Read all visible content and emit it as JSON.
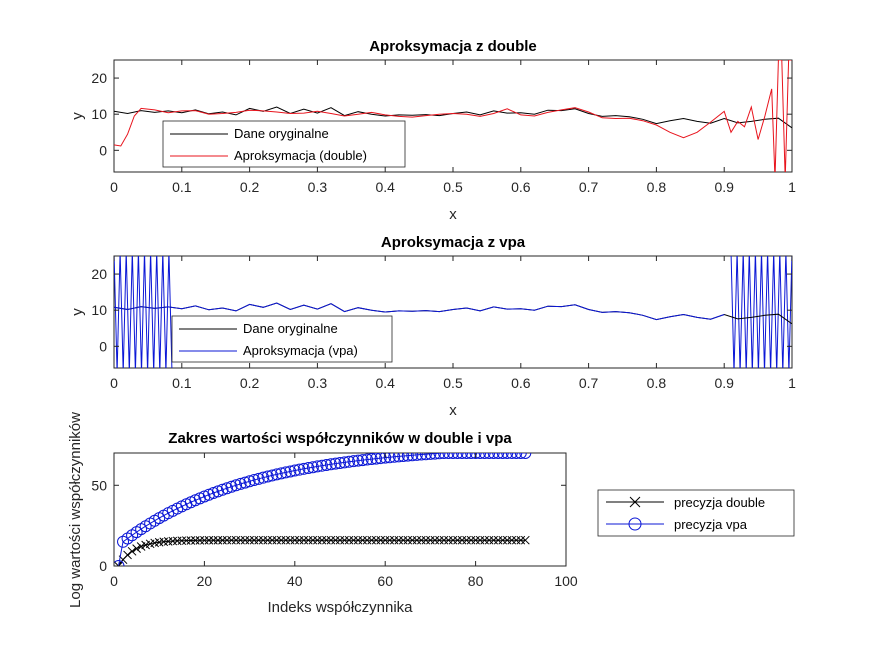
{
  "chart_data": [
    {
      "type": "line",
      "title": "Aproksymacja z double",
      "xlabel": "x",
      "ylabel": "y",
      "xlim": [
        0,
        1
      ],
      "ylim": [
        -6,
        25
      ],
      "xticks": [
        "0",
        "0.1",
        "0.2",
        "0.3",
        "0.4",
        "0.5",
        "0.6",
        "0.7",
        "0.8",
        "0.9",
        "1"
      ],
      "yticks": [
        "0",
        "10",
        "20"
      ],
      "legend_position": "bottom-left",
      "series": [
        {
          "name": "Dane oryginalne",
          "color": "#000000",
          "x": [
            0,
            0.02,
            0.04,
            0.06,
            0.08,
            0.1,
            0.12,
            0.14,
            0.16,
            0.18,
            0.2,
            0.22,
            0.24,
            0.26,
            0.28,
            0.3,
            0.32,
            0.34,
            0.36,
            0.38,
            0.4,
            0.42,
            0.44,
            0.46,
            0.48,
            0.5,
            0.52,
            0.54,
            0.56,
            0.58,
            0.6,
            0.62,
            0.64,
            0.66,
            0.68,
            0.7,
            0.72,
            0.74,
            0.76,
            0.78,
            0.8,
            0.82,
            0.84,
            0.86,
            0.88,
            0.9,
            0.92,
            0.94,
            0.96,
            0.98,
            1.0
          ],
          "y": [
            10.8,
            10.2,
            11.0,
            10.5,
            10.9,
            10.4,
            11.2,
            10.1,
            10.6,
            9.8,
            11.6,
            10.8,
            12.0,
            10.2,
            11.4,
            10.3,
            11.8,
            9.6,
            10.7,
            10.0,
            9.5,
            9.8,
            9.7,
            9.9,
            9.6,
            10.2,
            10.6,
            9.8,
            10.9,
            10.3,
            10.4,
            10.0,
            11.1,
            11.0,
            11.5,
            10.2,
            9.4,
            9.6,
            9.3,
            8.6,
            7.4,
            8.2,
            8.8,
            8.0,
            7.5,
            8.8,
            7.6,
            8.0,
            8.6,
            8.9,
            6.2
          ]
        },
        {
          "name": "Aproksymacja (double)",
          "color": "#e8141d",
          "x": [
            0,
            0.01,
            0.02,
            0.03,
            0.04,
            0.06,
            0.08,
            0.1,
            0.12,
            0.14,
            0.16,
            0.18,
            0.2,
            0.22,
            0.24,
            0.26,
            0.28,
            0.3,
            0.32,
            0.34,
            0.36,
            0.38,
            0.4,
            0.42,
            0.44,
            0.46,
            0.48,
            0.5,
            0.52,
            0.54,
            0.56,
            0.58,
            0.6,
            0.62,
            0.64,
            0.66,
            0.68,
            0.7,
            0.72,
            0.74,
            0.76,
            0.78,
            0.8,
            0.82,
            0.84,
            0.86,
            0.88,
            0.9,
            0.91,
            0.92,
            0.93,
            0.94,
            0.95,
            0.96,
            0.97,
            0.975,
            0.98,
            0.985,
            0.99,
            0.995,
            1.0
          ],
          "y": [
            1.5,
            1.2,
            4.5,
            9.5,
            11.6,
            11.2,
            10.4,
            10.9,
            11.0,
            10.0,
            10.2,
            10.5,
            11.1,
            10.9,
            10.6,
            10.2,
            10.3,
            10.8,
            10.2,
            9.5,
            10.0,
            10.5,
            9.8,
            9.4,
            9.2,
            9.6,
            10.0,
            10.2,
            10.0,
            9.4,
            10.2,
            11.5,
            9.8,
            9.5,
            10.5,
            11.2,
            11.8,
            10.6,
            9.0,
            8.8,
            8.9,
            8.2,
            7.0,
            5.0,
            3.5,
            5.0,
            7.8,
            10.8,
            5.0,
            8.0,
            6.5,
            12.0,
            3.0,
            9.5,
            17.0,
            -8.0,
            25.0,
            25.0,
            -8.0,
            25.0,
            25.0
          ]
        }
      ]
    },
    {
      "type": "line",
      "title": "Aproksymacja z vpa",
      "xlabel": "x",
      "ylabel": "y",
      "xlim": [
        0,
        1
      ],
      "ylim": [
        -6,
        25
      ],
      "xticks": [
        "0",
        "0.1",
        "0.2",
        "0.3",
        "0.4",
        "0.5",
        "0.6",
        "0.7",
        "0.8",
        "0.9",
        "1"
      ],
      "yticks": [
        "0",
        "10",
        "20"
      ],
      "legend_position": "bottom-left",
      "oscillation_note_regions": [
        [
          0,
          0.09
        ],
        [
          0.91,
          1.0
        ]
      ],
      "series": [
        {
          "name": "Dane oryginalne",
          "color": "#000000",
          "x": [
            0,
            0.02,
            0.04,
            0.06,
            0.08,
            0.1,
            0.12,
            0.14,
            0.16,
            0.18,
            0.2,
            0.22,
            0.24,
            0.26,
            0.28,
            0.3,
            0.32,
            0.34,
            0.36,
            0.38,
            0.4,
            0.42,
            0.44,
            0.46,
            0.48,
            0.5,
            0.52,
            0.54,
            0.56,
            0.58,
            0.6,
            0.62,
            0.64,
            0.66,
            0.68,
            0.7,
            0.72,
            0.74,
            0.76,
            0.78,
            0.8,
            0.82,
            0.84,
            0.86,
            0.88,
            0.9,
            0.92,
            0.94,
            0.96,
            0.98,
            1.0
          ],
          "y": [
            10.8,
            10.2,
            11.0,
            10.5,
            10.9,
            10.4,
            11.2,
            10.1,
            10.6,
            9.8,
            11.6,
            10.8,
            12.0,
            10.2,
            11.4,
            10.3,
            11.8,
            9.6,
            10.7,
            10.0,
            9.5,
            9.8,
            9.7,
            9.9,
            9.6,
            10.2,
            10.6,
            9.8,
            10.9,
            10.3,
            10.4,
            10.0,
            11.1,
            11.0,
            11.5,
            10.2,
            9.4,
            9.6,
            9.3,
            8.6,
            7.4,
            8.2,
            8.8,
            8.0,
            7.5,
            8.8,
            7.6,
            8.0,
            8.6,
            8.9,
            6.2
          ]
        },
        {
          "name": "Aproksymacja (vpa)",
          "color": "#0b17d6",
          "x": [
            0,
            0.02,
            0.04,
            0.06,
            0.08,
            0.1,
            0.12,
            0.14,
            0.16,
            0.18,
            0.2,
            0.22,
            0.24,
            0.26,
            0.28,
            0.3,
            0.32,
            0.34,
            0.36,
            0.38,
            0.4,
            0.42,
            0.44,
            0.46,
            0.48,
            0.5,
            0.52,
            0.54,
            0.56,
            0.58,
            0.6,
            0.62,
            0.64,
            0.66,
            0.68,
            0.7,
            0.72,
            0.74,
            0.76,
            0.78,
            0.8,
            0.82,
            0.84,
            0.86,
            0.88,
            0.9
          ],
          "y": [
            10.8,
            10.2,
            11.0,
            10.5,
            10.9,
            10.4,
            11.2,
            10.1,
            10.6,
            9.8,
            11.6,
            10.8,
            12.0,
            10.2,
            11.4,
            10.3,
            11.8,
            9.6,
            10.7,
            10.0,
            9.5,
            9.8,
            9.7,
            9.9,
            9.6,
            10.2,
            10.6,
            9.8,
            10.9,
            10.3,
            10.4,
            10.0,
            11.1,
            11.0,
            11.5,
            10.2,
            9.4,
            9.6,
            9.3,
            8.6,
            7.4,
            8.2,
            8.8,
            8.0,
            7.5,
            8.8
          ]
        }
      ]
    },
    {
      "type": "line",
      "title": "Zakres wartości współczynników w double i vpa",
      "xlabel": "Indeks współczynnika",
      "ylabel": "Log wartości współczynników",
      "xlim": [
        0,
        100
      ],
      "ylim": [
        0,
        70
      ],
      "xticks": [
        "0",
        "20",
        "40",
        "60",
        "80",
        "100"
      ],
      "yticks": [
        "0",
        "50"
      ],
      "legend_position": "outside-right",
      "series": [
        {
          "name": "precyzja double",
          "color": "#000000",
          "marker": "x",
          "n": 91,
          "cap": 16,
          "rate": 0.28
        },
        {
          "name": "precyzja vpa",
          "color": "#0b17d6",
          "marker": "o",
          "n": 91,
          "cap": 75,
          "rate": 0.035,
          "start": 15
        }
      ]
    }
  ]
}
